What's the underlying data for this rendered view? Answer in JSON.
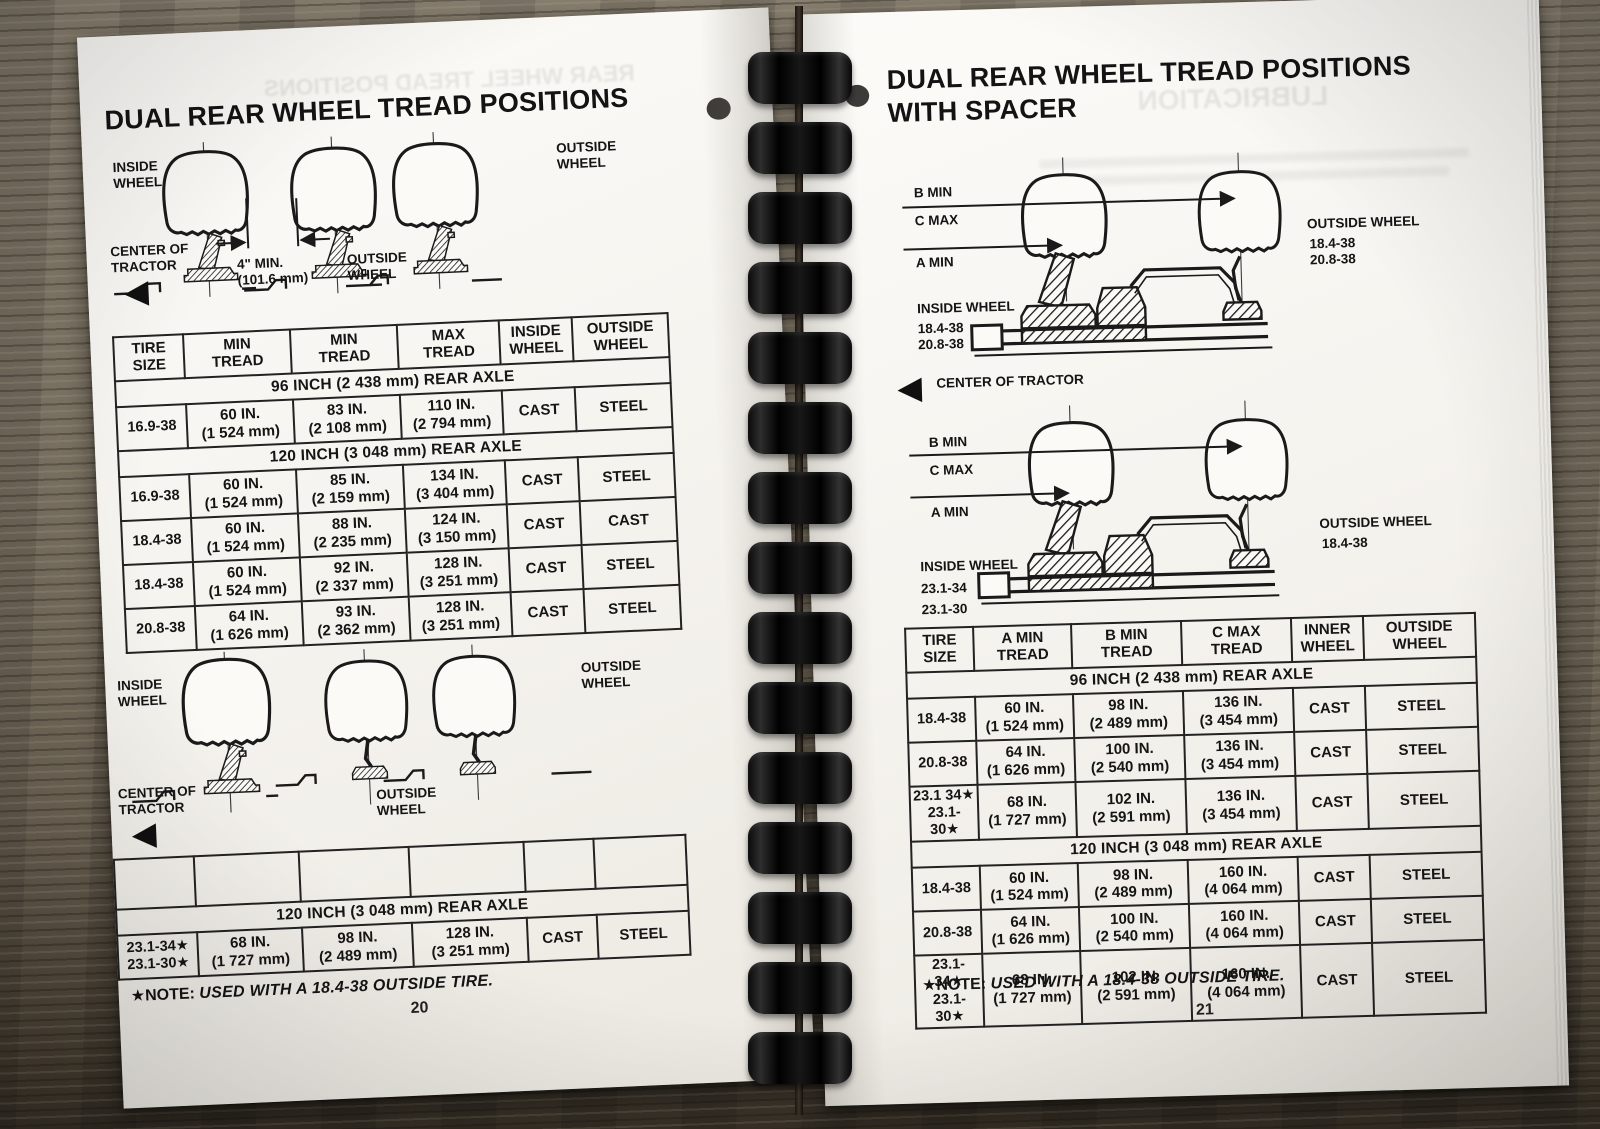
{
  "left_page": {
    "page_number": "20",
    "title": "DUAL REAR WHEEL TREAD POSITIONS",
    "bleed_through_title": "REAR WHEEL TREAD POSITIONS",
    "diagram_top": {
      "inside_wheel": "INSIDE\nWHEEL",
      "outside_wheel_right": "OUTSIDE\nWHEEL",
      "center_of_tractor": "CENTER OF\nTRACTOR",
      "min_spacing": "4\" MIN.\n(101.6 mm)",
      "outside_wheel_middle": "OUTSIDE\nWHEEL"
    },
    "tread_table": {
      "headers": [
        "TIRE\nSIZE",
        "MIN\nTREAD",
        "MIN\nTREAD",
        "MAX\nTREAD",
        "INSIDE\nWHEEL",
        "OUTSIDE\nWHEEL"
      ],
      "rows": [
        {
          "type": "section",
          "label": "96 INCH (2 438 mm) REAR AXLE"
        },
        {
          "type": "data",
          "cells": [
            "16.9-38",
            "60 IN.\n(1 524 mm)",
            "83 IN.\n(2 108 mm)",
            "110 IN.\n(2 794 mm)",
            "CAST",
            "STEEL"
          ]
        },
        {
          "type": "section",
          "label": "120 INCH (3 048 mm) REAR AXLE"
        },
        {
          "type": "data",
          "cells": [
            "16.9-38",
            "60 IN.\n(1 524 mm)",
            "85 IN.\n(2 159 mm)",
            "134 IN.\n(3 404 mm)",
            "CAST",
            "STEEL"
          ]
        },
        {
          "type": "data",
          "cells": [
            "18.4-38",
            "60 IN.\n(1 524 mm)",
            "88 IN.\n(2 235 mm)",
            "124 IN.\n(3 150 mm)",
            "CAST",
            "CAST"
          ]
        },
        {
          "type": "data",
          "cells": [
            "18.4-38",
            "60 IN.\n(1 524 mm)",
            "92 IN.\n(2 337 mm)",
            "128 IN.\n(3 251 mm)",
            "CAST",
            "STEEL"
          ]
        },
        {
          "type": "data",
          "cells": [
            "20.8-38",
            "64 IN.\n(1 626 mm)",
            "93 IN.\n(2 362 mm)",
            "128 IN.\n(3 251 mm)",
            "CAST",
            "STEEL"
          ]
        }
      ]
    },
    "diagram_bottom": {
      "inside_wheel": "INSIDE\nWHEEL",
      "outside_wheel_right": "OUTSIDE\nWHEEL",
      "center_of_tractor": "CENTER OF\nTRACTOR",
      "outside_wheel_middle": "OUTSIDE\nWHEEL"
    },
    "dual_table": {
      "rows": [
        {
          "type": "empty"
        },
        {
          "type": "section",
          "label": "120 INCH (3 048 mm) REAR AXLE"
        },
        {
          "type": "data",
          "cells": [
            "23.1-34★\n23.1-30★",
            "68 IN.\n(1 727 mm)",
            "98 IN.\n(2 489 mm)",
            "128 IN.\n(3 251 mm)",
            "CAST",
            "STEEL"
          ]
        }
      ]
    },
    "note": {
      "prefix": "★NOTE:",
      "text": "USED WITH A 18.4-38 OUTSIDE TIRE."
    }
  },
  "right_page": {
    "page_number": "21",
    "title_line1": "DUAL REAR WHEEL TREAD POSITIONS",
    "title_line2": "WITH SPACER",
    "bleed_through_title": "LUBRICATION",
    "diagram_top": {
      "b_min": "B MIN",
      "c_max": "C MAX",
      "a_min": "A MIN",
      "outside_wheel": "OUTSIDE WHEEL",
      "outside_sizes": "18.4-38\n20.8-38",
      "inside_wheel": "INSIDE WHEEL",
      "inside_sizes": "18.4-38\n20.8-38",
      "center_of_tractor": "CENTER OF TRACTOR"
    },
    "diagram_bottom": {
      "b_min": "B MIN",
      "c_max": "C MAX",
      "a_min": "A MIN",
      "outside_wheel": "OUTSIDE WHEEL",
      "outside_sizes": "18.4-38",
      "inside_wheel": "INSIDE WHEEL",
      "inside_sizes": "23.1-34\n23.1-30"
    },
    "spacer_table": {
      "headers": [
        "TIRE\nSIZE",
        "A MIN\nTREAD",
        "B MIN\nTREAD",
        "C MAX\nTREAD",
        "INNER\nWHEEL",
        "OUTSIDE\nWHEEL"
      ],
      "rows": [
        {
          "type": "section",
          "label": "96 INCH (2 438 mm) REAR AXLE"
        },
        {
          "type": "data",
          "cells": [
            "18.4-38",
            "60 IN.\n(1 524 mm)",
            "98 IN.\n(2 489 mm)",
            "136 IN.\n(3 454 mm)",
            "CAST",
            "STEEL"
          ]
        },
        {
          "type": "data",
          "cells": [
            "20.8-38",
            "64 IN.\n(1 626 mm)",
            "100 IN.\n(2 540 mm)",
            "136 IN.\n(3 454 mm)",
            "CAST",
            "STEEL"
          ]
        },
        {
          "type": "data",
          "cells": [
            "23.1 34★\n23.1-30★",
            "68 IN.\n(1 727 mm)",
            "102 IN.\n(2 591 mm)",
            "136 IN.\n(3 454 mm)",
            "CAST",
            "STEEL"
          ]
        },
        {
          "type": "section",
          "label": "120 INCH (3 048 mm) REAR AXLE"
        },
        {
          "type": "data",
          "cells": [
            "18.4-38",
            "60 IN.\n(1 524 mm)",
            "98 IN.\n(2 489 mm)",
            "160 IN.\n(4 064 mm)",
            "CAST",
            "STEEL"
          ]
        },
        {
          "type": "data",
          "cells": [
            "20.8-38",
            "64 IN.\n(1 626 mm)",
            "100 IN.\n(2 540 mm)",
            "160 IN.\n(4 064 mm)",
            "CAST",
            "STEEL"
          ]
        },
        {
          "type": "data",
          "cells": [
            "23.1-34★\n23.1-30★",
            "68 IN.\n(1 727 mm)",
            "102 IN.\n(2 591 mm)",
            "160 IN.\n(4 064 mm)",
            "CAST",
            "STEEL"
          ]
        }
      ]
    },
    "note": {
      "prefix": "★NOTE:",
      "text": "USED WITH A 18.4-38 OUTSIDE TIRE."
    }
  },
  "binding": {
    "loop_count": 15
  }
}
